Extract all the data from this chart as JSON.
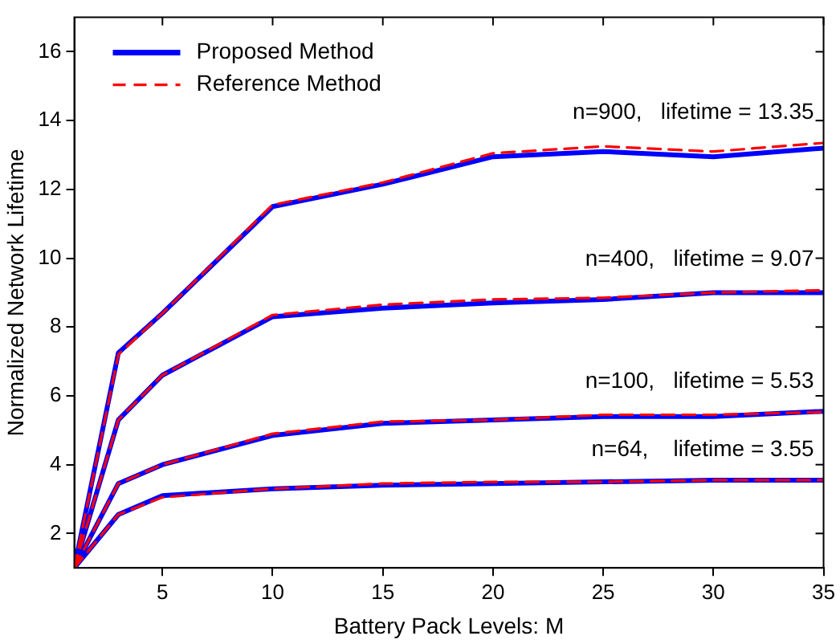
{
  "chart_data": {
    "type": "line",
    "xlabel": "Battery Pack Levels: M",
    "ylabel": "Normalized Network Lifetime",
    "x": [
      1,
      3,
      5,
      10,
      15,
      20,
      25,
      30,
      35
    ],
    "series": [
      {
        "name": "Proposed Method",
        "color": "#0000ff",
        "line_style": "solid",
        "values": [
          1,
          7.25,
          8.4,
          11.5,
          12.15,
          12.95,
          13.1,
          12.95,
          13.2
        ]
      },
      {
        "name": "Reference Method",
        "color": "#ff0000",
        "line_style": "dashed",
        "values": [
          1,
          7.2,
          8.4,
          11.55,
          12.2,
          13.05,
          13.25,
          13.1,
          13.35
        ]
      },
      {
        "color": "#0000ff",
        "line_style": "solid",
        "values": [
          1,
          5.3,
          6.6,
          8.3,
          8.55,
          8.7,
          8.8,
          9.0,
          9.0
        ]
      },
      {
        "color": "#ff0000",
        "line_style": "dashed",
        "values": [
          1,
          5.3,
          6.6,
          8.35,
          8.65,
          8.8,
          8.85,
          9.0,
          9.07
        ]
      },
      {
        "color": "#0000ff",
        "line_style": "solid",
        "values": [
          1,
          3.45,
          4.0,
          4.85,
          5.2,
          5.3,
          5.4,
          5.4,
          5.55
        ]
      },
      {
        "color": "#ff0000",
        "line_style": "dashed",
        "values": [
          1,
          3.45,
          4.0,
          4.9,
          5.25,
          5.3,
          5.45,
          5.45,
          5.53
        ]
      },
      {
        "color": "#0000ff",
        "line_style": "solid",
        "values": [
          1,
          2.55,
          3.1,
          3.3,
          3.4,
          3.45,
          3.5,
          3.55,
          3.55
        ]
      },
      {
        "color": "#ff0000",
        "line_style": "dashed",
        "values": [
          1,
          2.55,
          3.05,
          3.3,
          3.45,
          3.5,
          3.5,
          3.55,
          3.55
        ]
      }
    ],
    "annotations": [
      {
        "text": "n=900,   lifetime = 13.35",
        "y": 13.35
      },
      {
        "text": "n=400,   lifetime = 9.07",
        "y": 9.07
      },
      {
        "text": "n=100,   lifetime = 5.53",
        "y": 5.53
      },
      {
        "text": "n=64,    lifetime = 3.55",
        "y": 3.55
      }
    ],
    "xlim": [
      1,
      35
    ],
    "xticks": [
      5,
      10,
      15,
      20,
      25,
      30,
      35
    ],
    "ylim": [
      1,
      17
    ],
    "yticks": [
      2,
      4,
      6,
      8,
      10,
      12,
      14,
      16
    ],
    "grid": false,
    "legend": "top left",
    "marker": "none"
  }
}
